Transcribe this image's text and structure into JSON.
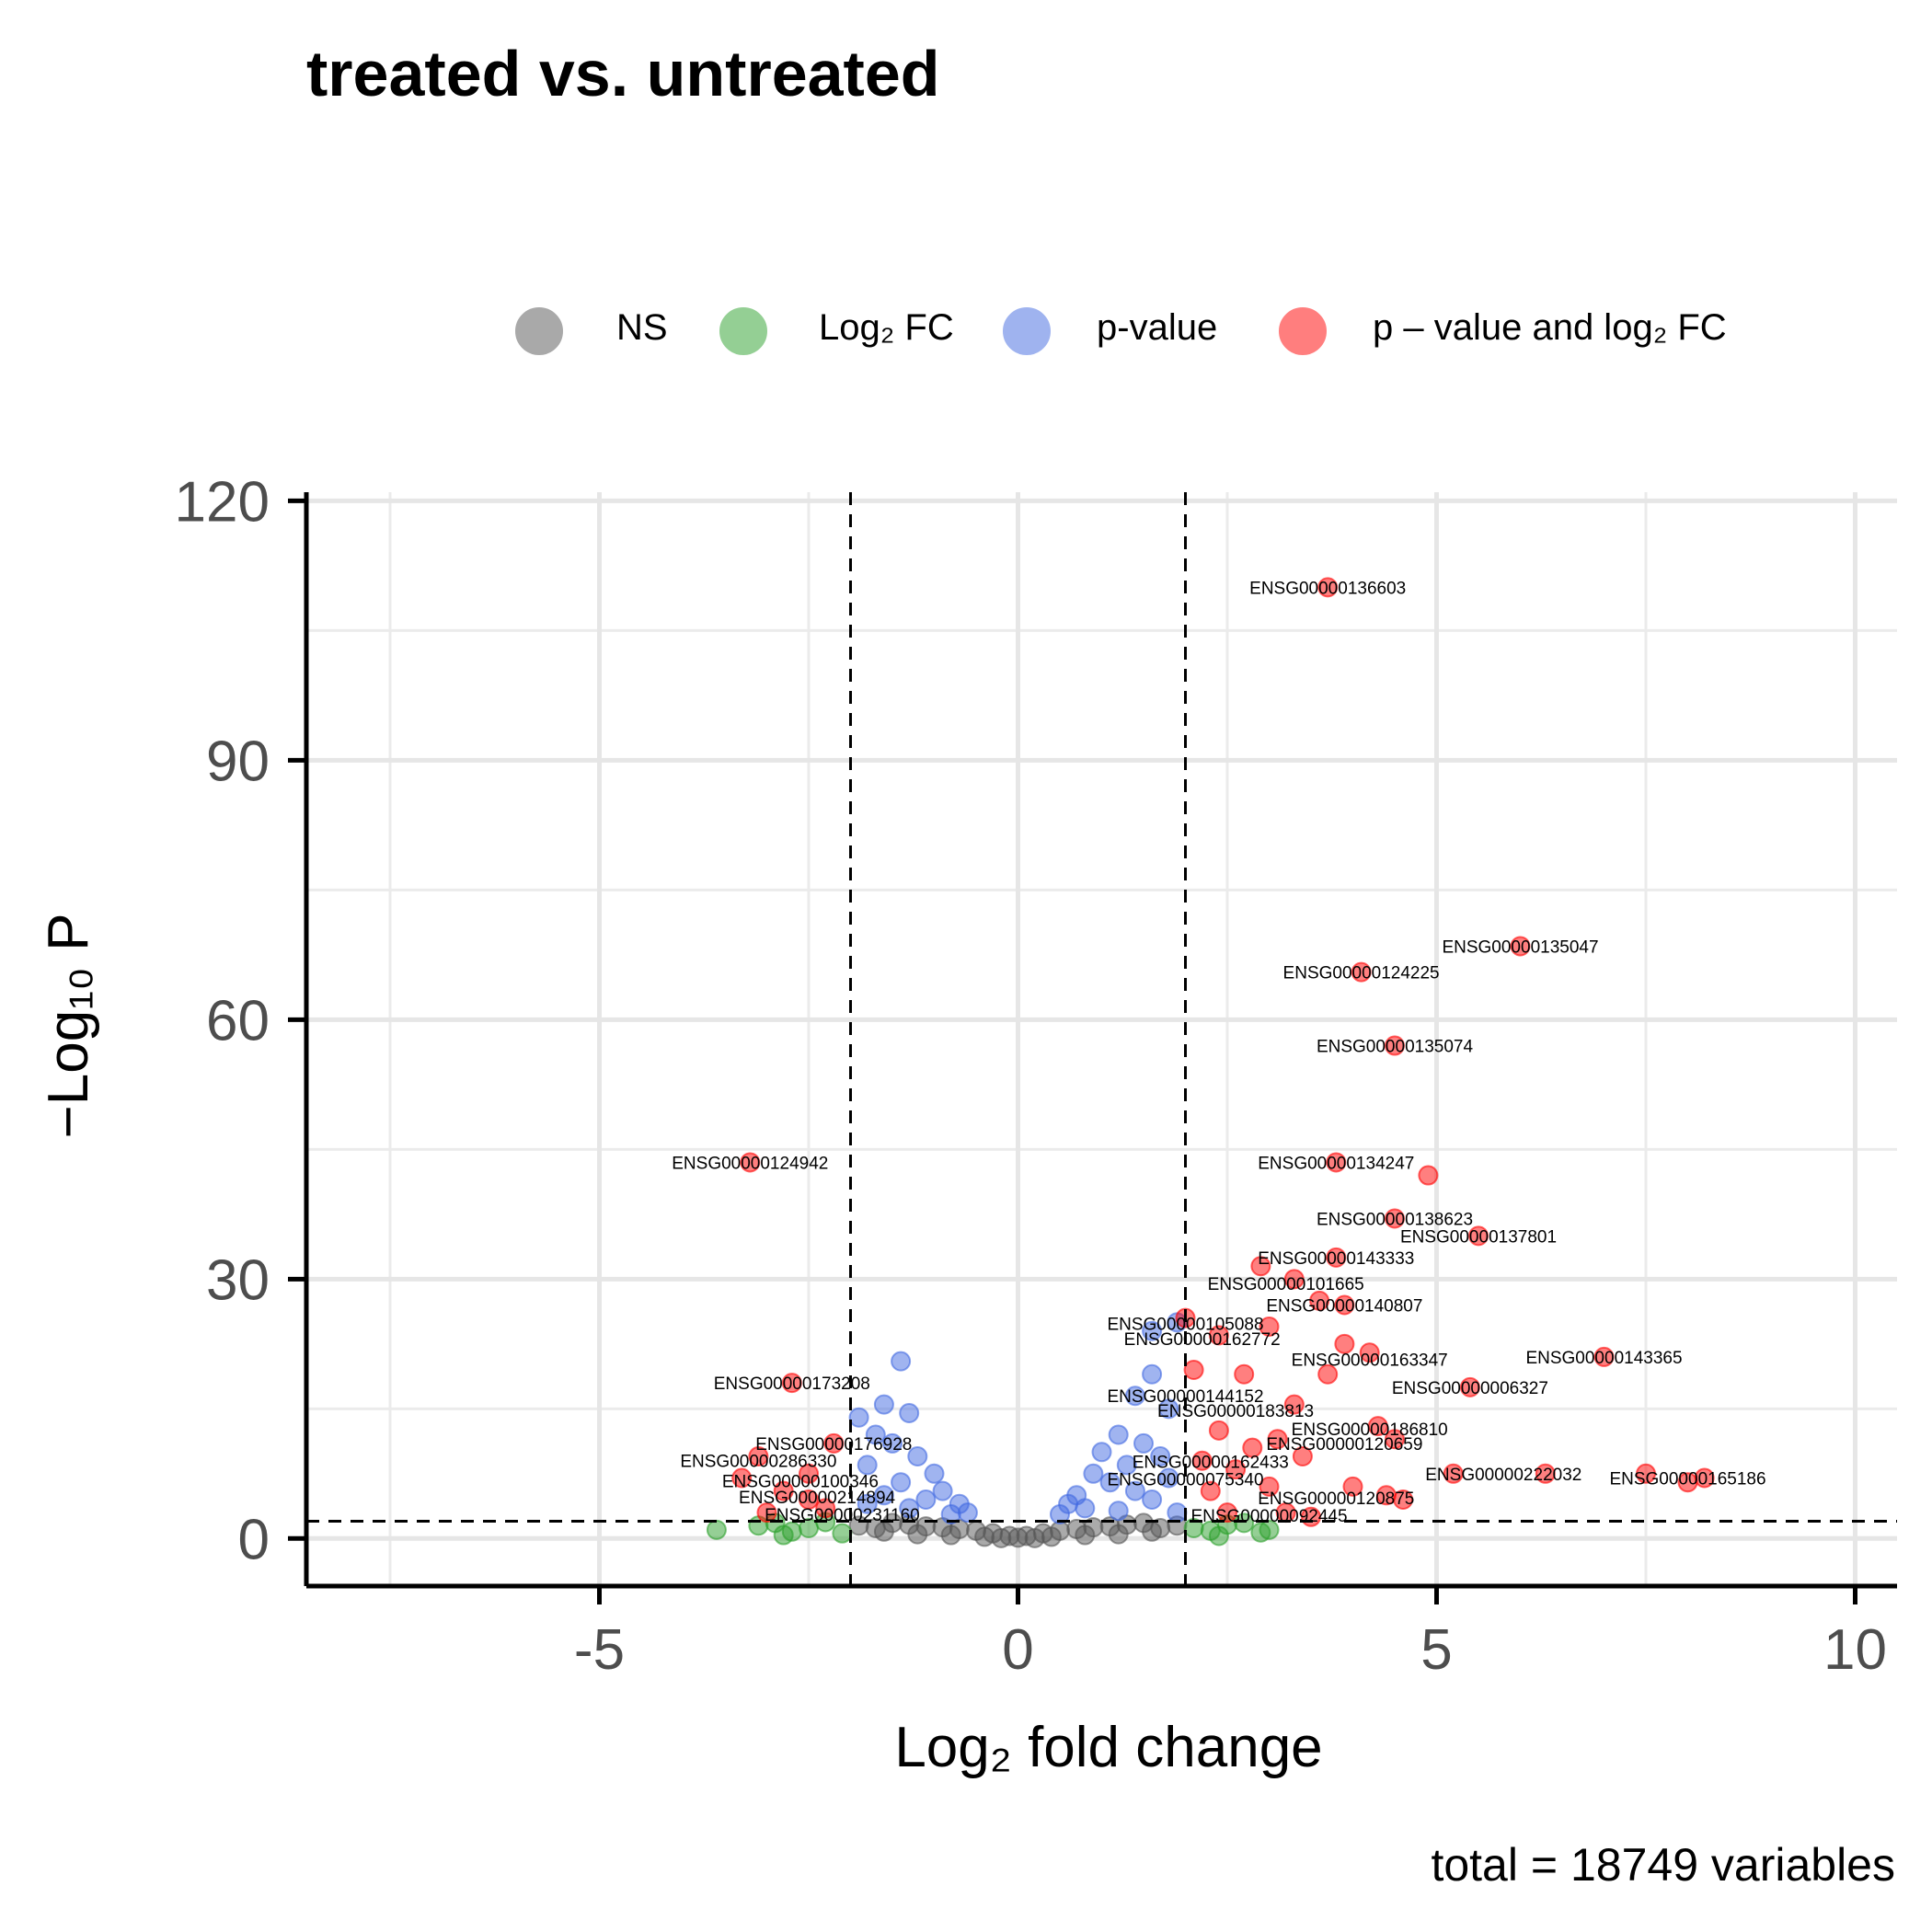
{
  "title": "treated vs. untreated",
  "caption": "total = 18749 variables",
  "legend": {
    "items": [
      {
        "key": "NS",
        "label": "NS",
        "color": "#555555"
      },
      {
        "key": "FC",
        "label": "Log₂ FC",
        "color": "#2ca02c"
      },
      {
        "key": "P",
        "label": "p-value",
        "color": "#4169e1"
      },
      {
        "key": "FCP",
        "label": "p – value and log₂ FC",
        "color": "#ff0000"
      }
    ]
  },
  "chart_data": {
    "type": "scatter",
    "title": "treated vs. untreated",
    "xlabel": "Log₂ fold change",
    "ylabel": "−Log₁₀ P",
    "xlim": [
      -8.5,
      10.5
    ],
    "ylim": [
      -5.5,
      121
    ],
    "x_ticks": [
      -5,
      0,
      5,
      10
    ],
    "y_ticks": [
      0,
      30,
      60,
      90,
      120
    ],
    "fc_cutoff": 2,
    "p_cutoff_neglog10": 2,
    "grid": true,
    "legend_position": "top",
    "series": [
      {
        "name": "NS",
        "color": "#555555",
        "points": [
          [
            -1.9,
            1.5
          ],
          [
            -1.7,
            1.2
          ],
          [
            -1.5,
            1.8
          ],
          [
            -1.3,
            1.6
          ],
          [
            -1.1,
            1.4
          ],
          [
            -0.9,
            1.3
          ],
          [
            -0.7,
            1.1
          ],
          [
            -0.5,
            0.9
          ],
          [
            -0.3,
            0.6
          ],
          [
            -0.1,
            0.3
          ],
          [
            0.1,
            0.3
          ],
          [
            0.3,
            0.6
          ],
          [
            0.5,
            0.9
          ],
          [
            0.7,
            1.1
          ],
          [
            0.9,
            1.3
          ],
          [
            1.1,
            1.4
          ],
          [
            1.3,
            1.6
          ],
          [
            1.5,
            1.8
          ],
          [
            1.7,
            1.2
          ],
          [
            1.9,
            1.5
          ],
          [
            -1.2,
            0.5
          ],
          [
            -0.8,
            0.4
          ],
          [
            0.8,
            0.4
          ],
          [
            1.2,
            0.5
          ],
          [
            0.0,
            0.1
          ],
          [
            -0.4,
            0.2
          ],
          [
            0.4,
            0.2
          ],
          [
            1.6,
            0.8
          ],
          [
            -1.6,
            0.8
          ],
          [
            0.2,
            0.05
          ],
          [
            -0.2,
            0.05
          ]
        ]
      },
      {
        "name": "Log₂ FC",
        "color": "#2ca02c",
        "points": [
          [
            -3.6,
            1.0
          ],
          [
            -3.1,
            1.5
          ],
          [
            -2.9,
            1.8
          ],
          [
            -2.7,
            0.8
          ],
          [
            -2.5,
            1.2
          ],
          [
            -2.3,
            1.9
          ],
          [
            -2.1,
            0.6
          ],
          [
            2.1,
            1.2
          ],
          [
            2.3,
            0.9
          ],
          [
            2.5,
            1.6
          ],
          [
            2.7,
            1.8
          ],
          [
            2.9,
            0.7
          ],
          [
            3.0,
            1.0
          ],
          [
            -2.8,
            0.4
          ],
          [
            2.4,
            0.3
          ]
        ]
      },
      {
        "name": "p-value",
        "color": "#4169e1",
        "points": [
          [
            -1.4,
            20.5
          ],
          [
            -1.6,
            15.5
          ],
          [
            -1.3,
            14.5
          ],
          [
            -1.9,
            14.0
          ],
          [
            -1.7,
            12.0
          ],
          [
            -1.5,
            11.0
          ],
          [
            -1.2,
            9.5
          ],
          [
            -1.8,
            8.5
          ],
          [
            -1.0,
            7.5
          ],
          [
            -1.4,
            6.5
          ],
          [
            -0.9,
            5.5
          ],
          [
            -1.6,
            5.0
          ],
          [
            -1.1,
            4.5
          ],
          [
            -0.7,
            4.0
          ],
          [
            -1.3,
            3.5
          ],
          [
            -0.6,
            3.0
          ],
          [
            -1.8,
            4.0
          ],
          [
            -0.8,
            2.8
          ],
          [
            1.9,
            25.0
          ],
          [
            1.6,
            24.0
          ],
          [
            1.6,
            19.0
          ],
          [
            1.4,
            16.5
          ],
          [
            1.8,
            15.0
          ],
          [
            1.2,
            12.0
          ],
          [
            1.5,
            11.0
          ],
          [
            1.0,
            10.0
          ],
          [
            1.7,
            9.5
          ],
          [
            1.3,
            8.5
          ],
          [
            0.9,
            7.5
          ],
          [
            1.8,
            7.0
          ],
          [
            1.1,
            6.5
          ],
          [
            0.7,
            5.0
          ],
          [
            1.4,
            5.5
          ],
          [
            0.6,
            4.0
          ],
          [
            1.6,
            4.5
          ],
          [
            0.8,
            3.5
          ],
          [
            1.9,
            3.0
          ],
          [
            0.5,
            2.8
          ],
          [
            1.2,
            3.2
          ]
        ]
      },
      {
        "name": "p – value and log₂ FC",
        "color": "#ff0000",
        "points": [
          [
            3.7,
            110.0
          ],
          [
            6.0,
            68.5
          ],
          [
            4.1,
            65.5
          ],
          [
            4.5,
            57.0
          ],
          [
            -3.2,
            43.5
          ],
          [
            3.8,
            43.5
          ],
          [
            4.9,
            42.0
          ],
          [
            4.5,
            37.0
          ],
          [
            5.5,
            35.0
          ],
          [
            3.8,
            32.5
          ],
          [
            2.9,
            31.5
          ],
          [
            3.3,
            30.0
          ],
          [
            3.6,
            27.5
          ],
          [
            3.9,
            27.0
          ],
          [
            2.0,
            25.5
          ],
          [
            2.4,
            23.5
          ],
          [
            3.0,
            24.5
          ],
          [
            3.9,
            22.5
          ],
          [
            4.2,
            21.5
          ],
          [
            7.0,
            21.0
          ],
          [
            2.1,
            19.5
          ],
          [
            2.7,
            19.0
          ],
          [
            3.7,
            19.0
          ],
          [
            -2.7,
            18.0
          ],
          [
            5.4,
            17.5
          ],
          [
            3.3,
            15.5
          ],
          [
            4.3,
            13.0
          ],
          [
            2.4,
            12.5
          ],
          [
            3.1,
            11.5
          ],
          [
            4.5,
            11.5
          ],
          [
            -2.2,
            11.0
          ],
          [
            2.8,
            10.5
          ],
          [
            3.4,
            9.5
          ],
          [
            2.2,
            9.0
          ],
          [
            -3.1,
            9.5
          ],
          [
            2.6,
            8.0
          ],
          [
            5.2,
            7.5
          ],
          [
            6.3,
            7.5
          ],
          [
            7.5,
            7.5
          ],
          [
            8.2,
            7.0
          ],
          [
            8.0,
            6.5
          ],
          [
            -2.5,
            7.5
          ],
          [
            -3.3,
            7.0
          ],
          [
            4.0,
            6.0
          ],
          [
            3.0,
            6.0
          ],
          [
            -2.8,
            5.5
          ],
          [
            2.3,
            5.5
          ],
          [
            4.4,
            5.0
          ],
          [
            4.6,
            4.5
          ],
          [
            -2.5,
            4.5
          ],
          [
            -2.3,
            3.5
          ],
          [
            -3.0,
            3.0
          ],
          [
            3.2,
            3.0
          ],
          [
            2.5,
            3.0
          ],
          [
            3.5,
            2.5
          ]
        ]
      }
    ],
    "labels": [
      {
        "text": "ENSG00000136603",
        "x": 3.7,
        "y": 110.0
      },
      {
        "text": "ENSG00000135047",
        "x": 6.0,
        "y": 68.5
      },
      {
        "text": "ENSG00000124225",
        "x": 4.1,
        "y": 65.5
      },
      {
        "text": "ENSG00000135074",
        "x": 4.5,
        "y": 57.0
      },
      {
        "text": "ENSG00000124942",
        "x": -3.2,
        "y": 43.5
      },
      {
        "text": "ENSG00000134247",
        "x": 3.8,
        "y": 43.5
      },
      {
        "text": "ENSG00000138623",
        "x": 4.5,
        "y": 37.0
      },
      {
        "text": "ENSG00000137801",
        "x": 5.5,
        "y": 35.0
      },
      {
        "text": "ENSG00000143333",
        "x": 3.8,
        "y": 32.5
      },
      {
        "text": "ENSG00000101665",
        "x": 3.2,
        "y": 29.5
      },
      {
        "text": "ENSG00000140807",
        "x": 3.9,
        "y": 27.0
      },
      {
        "text": "ENSG00000105088",
        "x": 2.0,
        "y": 24.9
      },
      {
        "text": "ENSG00000162772",
        "x": 2.2,
        "y": 23.1
      },
      {
        "text": "ENSG00000143365",
        "x": 7.0,
        "y": 21.0
      },
      {
        "text": "ENSG00000163347",
        "x": 4.2,
        "y": 20.7
      },
      {
        "text": "ENSG00000173208",
        "x": -2.7,
        "y": 18.0
      },
      {
        "text": "ENSG00000006327",
        "x": 5.4,
        "y": 17.5
      },
      {
        "text": "ENSG00000144152",
        "x": 2.0,
        "y": 16.5
      },
      {
        "text": "ENSG00000183813",
        "x": 2.6,
        "y": 14.8
      },
      {
        "text": "ENSG00000186810",
        "x": 4.2,
        "y": 12.7
      },
      {
        "text": "ENSG00000176928",
        "x": -2.2,
        "y": 11.0
      },
      {
        "text": "ENSG00000120659",
        "x": 3.9,
        "y": 11.0
      },
      {
        "text": "ENSG00000286330",
        "x": -3.1,
        "y": 9.0
      },
      {
        "text": "ENSG00000162433",
        "x": 2.3,
        "y": 8.9
      },
      {
        "text": "ENSG00000222032",
        "x": 5.8,
        "y": 7.5
      },
      {
        "text": "ENSG00000165186",
        "x": 8.0,
        "y": 7.0
      },
      {
        "text": "ENSG00000100346",
        "x": -2.6,
        "y": 6.7
      },
      {
        "text": "ENSG00000075340",
        "x": 2.0,
        "y": 6.9
      },
      {
        "text": "ENSG00000214894",
        "x": -2.4,
        "y": 4.8
      },
      {
        "text": "ENSG00000120875",
        "x": 3.8,
        "y": 4.7
      },
      {
        "text": "ENSG00000231160",
        "x": -2.1,
        "y": 2.8
      },
      {
        "text": "ENSG00000092445",
        "x": 3.0,
        "y": 2.7
      }
    ]
  }
}
